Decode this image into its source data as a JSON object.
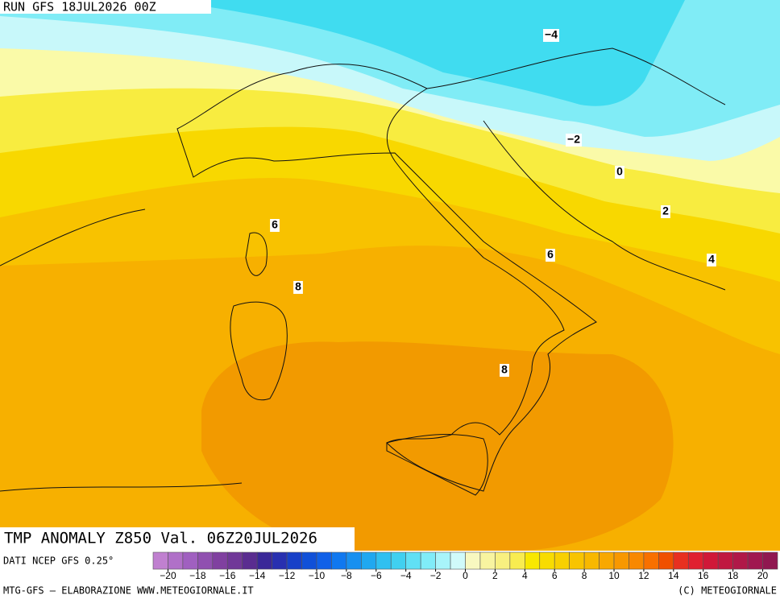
{
  "header": {
    "run": "RUN GFS 18JUL2026 00Z"
  },
  "title": "TMP ANOMALY Z850 Val. 06Z20JUL2026",
  "source": "DATI NCEP GFS 0.25°",
  "footer": {
    "left": "MTG-GFS — ELABORAZIONE WWW.METEOGIORNALE.IT",
    "right": "(C) METEOGIORNALE"
  },
  "contour_labels": [
    "−4",
    "−2",
    "0",
    "2",
    "4",
    "6",
    "6",
    "8",
    "8"
  ],
  "colorbar": {
    "range": [
      -21,
      21
    ],
    "colors": [
      "#c080d0",
      "#b070c8",
      "#a060c0",
      "#9050b0",
      "#8040a0",
      "#703898",
      "#5a2d90",
      "#3a2898",
      "#2830b0",
      "#1840c8",
      "#1050d8",
      "#1060e8",
      "#1078f0",
      "#1890f0",
      "#20a8f0",
      "#30c0f0",
      "#40d0f0",
      "#60e0f5",
      "#80ecf8",
      "#a8f4fa",
      "#d0fafa",
      "#f8f8c0",
      "#f8f4a0",
      "#f8f080",
      "#f8ec50",
      "#f8e800",
      "#f8dc00",
      "#f8d000",
      "#f8c400",
      "#f8b800",
      "#f8a800",
      "#f89800",
      "#f88800",
      "#f87000",
      "#f05000",
      "#e83020",
      "#e02030",
      "#d01838",
      "#c01840",
      "#b01848",
      "#a01850",
      "#901850"
    ],
    "ticks": [
      {
        "value": -20,
        "label": "−20"
      },
      {
        "value": -18,
        "label": "−18"
      },
      {
        "value": -16,
        "label": "−16"
      },
      {
        "value": -14,
        "label": "−14"
      },
      {
        "value": -12,
        "label": "−12"
      },
      {
        "value": -10,
        "label": "−10"
      },
      {
        "value": -8,
        "label": "−8"
      },
      {
        "value": -6,
        "label": "−6"
      },
      {
        "value": -4,
        "label": "−4"
      },
      {
        "value": -2,
        "label": "−2"
      },
      0,
      2,
      4,
      6,
      8,
      10,
      12,
      14,
      16,
      18,
      20
    ]
  }
}
